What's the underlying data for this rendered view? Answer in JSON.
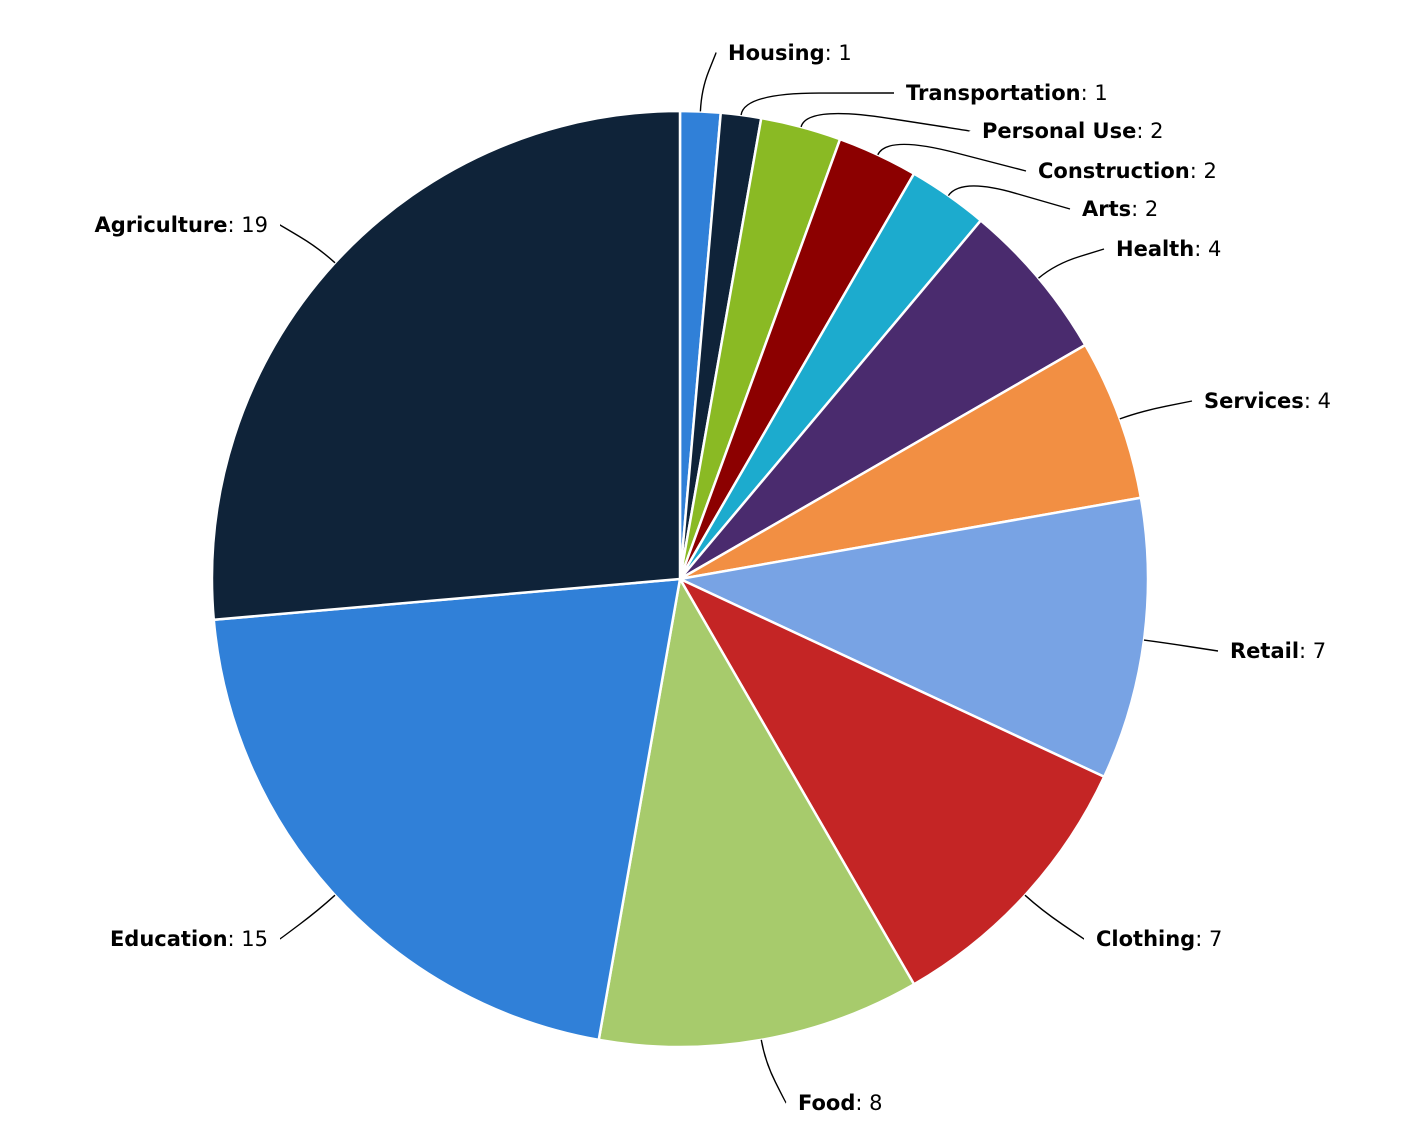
{
  "chart_data": {
    "type": "pie",
    "title": "",
    "categories": [
      "Housing",
      "Transportation",
      "Personal Use",
      "Construction",
      "Arts",
      "Health",
      "Services",
      "Retail",
      "Clothing",
      "Food",
      "Education",
      "Agriculture"
    ],
    "values": [
      1,
      1,
      2,
      2,
      2,
      4,
      4,
      7,
      7,
      8,
      15,
      19
    ],
    "colors": [
      "#3080d8",
      "#0f2339",
      "#8aba24",
      "#8c0000",
      "#1cabce",
      "#4a2b6e",
      "#f28f43",
      "#78a3e4",
      "#c42525",
      "#a7cb6c",
      "#3080d8",
      "#0f2339"
    ],
    "start_angle_deg": 0,
    "direction": "clockwise",
    "data_labels": "name: value, outside with connectors",
    "legend": "none"
  }
}
